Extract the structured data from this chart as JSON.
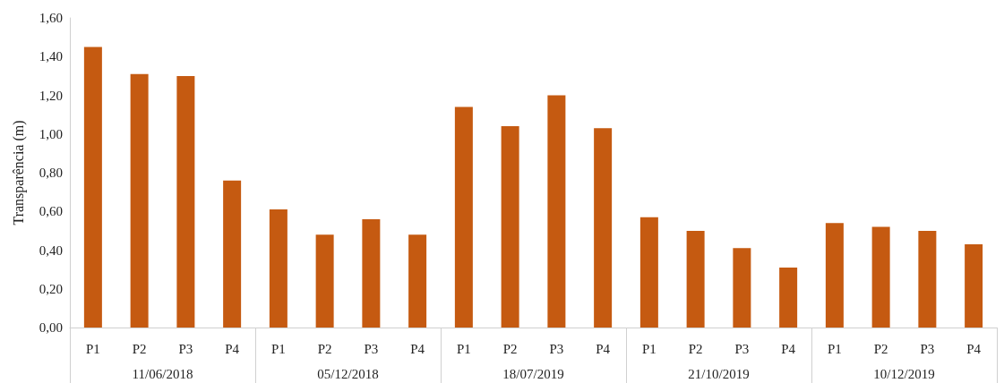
{
  "chart_data": {
    "type": "bar",
    "ylabel": "Transparência (m)",
    "categories": [
      "P1",
      "P2",
      "P3",
      "P4",
      "P1",
      "P2",
      "P3",
      "P4",
      "P1",
      "P2",
      "P3",
      "P4",
      "P1",
      "P2",
      "P3",
      "P4",
      "P1",
      "P2",
      "P3",
      "P4"
    ],
    "annotations": [
      "11/06/2018",
      "05/12/2018",
      "18/07/2019",
      "21/10/2019",
      "10/12/2019"
    ],
    "values": [
      1.45,
      1.31,
      1.3,
      0.76,
      0.61,
      0.48,
      0.56,
      0.48,
      1.14,
      1.04,
      1.2,
      1.03,
      0.57,
      0.5,
      0.41,
      0.31,
      0.54,
      0.52,
      0.5,
      0.43
    ],
    "color": "#c55a11",
    "ylim": [
      0,
      1.6
    ],
    "yticks": [
      {
        "value": 0,
        "label": "0,00"
      },
      {
        "value": 0.2,
        "label": "0,20"
      },
      {
        "value": 0.4,
        "label": "0,40"
      },
      {
        "value": 0.6,
        "label": "0,60"
      },
      {
        "value": 0.8,
        "label": "0,80"
      },
      {
        "value": 1.0,
        "label": "1,00"
      },
      {
        "value": 1.2,
        "label": "1,20"
      },
      {
        "value": 1.4,
        "label": "1,40"
      },
      {
        "value": 1.6,
        "label": "1,60"
      }
    ],
    "grid": false
  }
}
